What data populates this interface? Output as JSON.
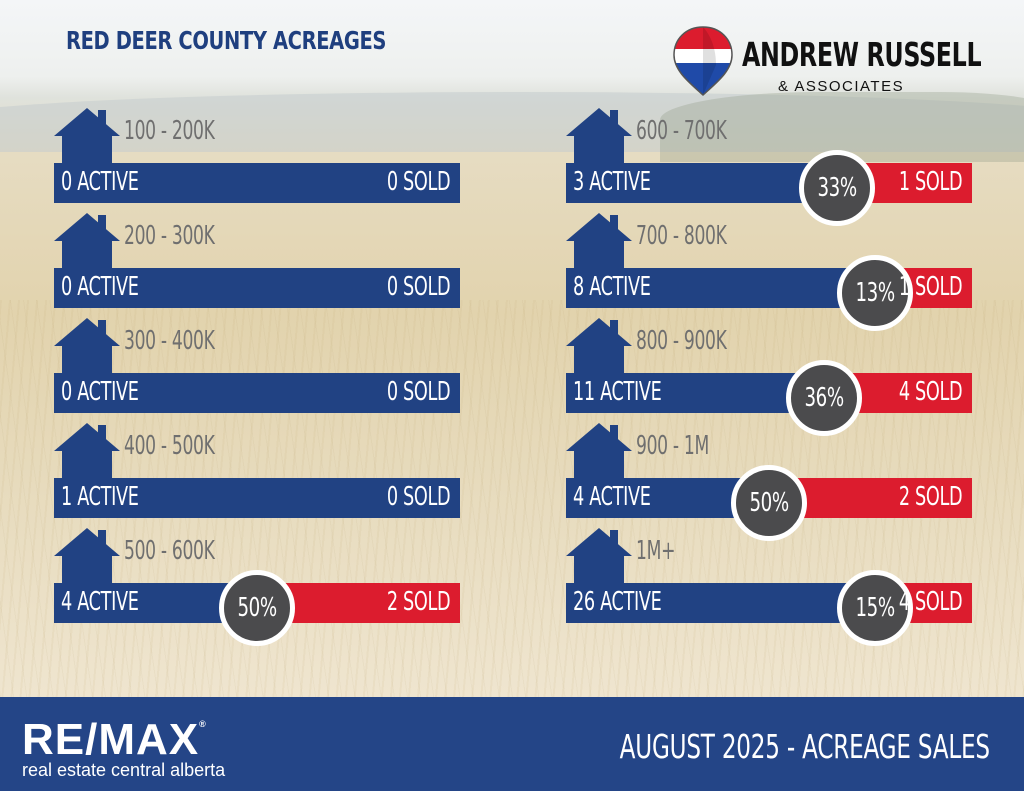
{
  "title": "RED DEER COUNTY ACREAGES",
  "brand": {
    "name": "ANDREW RUSSELL",
    "sub": "& ASSOCIATES"
  },
  "colors": {
    "bar": "#214283",
    "sold": "#dc1c2e",
    "badge": "#4b4b4d",
    "footer": "#244587"
  },
  "chart_data": {
    "type": "bar",
    "title": "RED DEER COUNTY ACREAGES",
    "categories": [
      "100 - 200K",
      "200 - 300K",
      "300 - 400K",
      "400 - 500K",
      "500 - 600K",
      "600 - 700K",
      "700 - 800K",
      "800 - 900K",
      "900 - 1M",
      "1M+"
    ],
    "series": [
      {
        "name": "ACTIVE",
        "values": [
          0,
          0,
          0,
          1,
          4,
          3,
          8,
          11,
          4,
          26
        ]
      },
      {
        "name": "SOLD",
        "values": [
          0,
          0,
          0,
          0,
          2,
          1,
          1,
          4,
          2,
          4
        ]
      }
    ],
    "rows": [
      {
        "range": "100 - 200K",
        "active": 0,
        "sold": 0,
        "active_label": "0 ACTIVE",
        "sold_label": "0 SOLD",
        "percent": null,
        "percent_label": ""
      },
      {
        "range": "200 - 300K",
        "active": 0,
        "sold": 0,
        "active_label": "0 ACTIVE",
        "sold_label": "0 SOLD",
        "percent": null,
        "percent_label": ""
      },
      {
        "range": "300 - 400K",
        "active": 0,
        "sold": 0,
        "active_label": "0 ACTIVE",
        "sold_label": "0 SOLD",
        "percent": null,
        "percent_label": ""
      },
      {
        "range": "400 - 500K",
        "active": 1,
        "sold": 0,
        "active_label": "1 ACTIVE",
        "sold_label": "0 SOLD",
        "percent": null,
        "percent_label": ""
      },
      {
        "range": "500 - 600K",
        "active": 4,
        "sold": 2,
        "active_label": "4 ACTIVE",
        "sold_label": "2 SOLD",
        "percent": 50,
        "percent_label": "50%"
      },
      {
        "range": "600 - 700K",
        "active": 3,
        "sold": 1,
        "active_label": "3 ACTIVE",
        "sold_label": "1 SOLD",
        "percent": 33,
        "percent_label": "33%"
      },
      {
        "range": "700 - 800K",
        "active": 8,
        "sold": 1,
        "active_label": "8 ACTIVE",
        "sold_label": "1 SOLD",
        "percent": 13,
        "percent_label": "13%"
      },
      {
        "range": "800 - 900K",
        "active": 11,
        "sold": 4,
        "active_label": "11 ACTIVE",
        "sold_label": "4 SOLD",
        "percent": 36,
        "percent_label": "36%"
      },
      {
        "range": "900 - 1M",
        "active": 4,
        "sold": 2,
        "active_label": "4 ACTIVE",
        "sold_label": "2 SOLD",
        "percent": 50,
        "percent_label": "50%"
      },
      {
        "range": "1M+",
        "active": 26,
        "sold": 4,
        "active_label": "26 ACTIVE",
        "sold_label": "4 SOLD",
        "percent": 15,
        "percent_label": "15%"
      }
    ]
  },
  "footer": {
    "logo": "RE/MAX",
    "logo_mark": "®",
    "logo_sub": "real estate central alberta",
    "title": "AUGUST 2025 - ACREAGE SALES"
  }
}
